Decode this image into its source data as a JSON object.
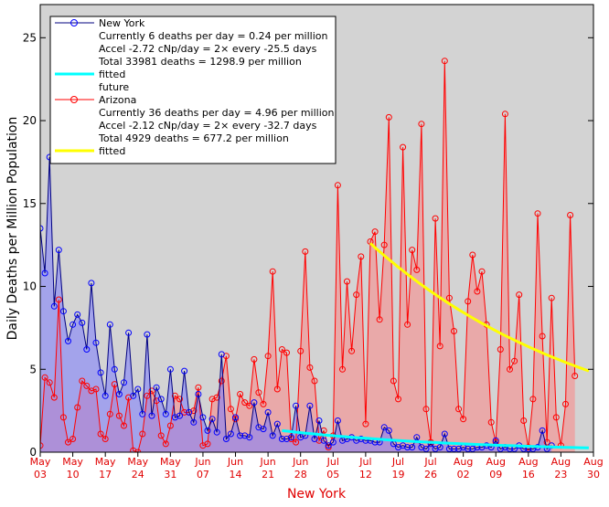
{
  "chart_data": {
    "type": "line",
    "xlabel": "New York",
    "ylabel": "Daily Deaths per Million Population",
    "ylim": [
      0,
      27
    ],
    "yticks": [
      0,
      5,
      10,
      15,
      20,
      25
    ],
    "grid": false,
    "legend_position": "top-left",
    "x_ticks": [
      {
        "month": "May",
        "day": "03"
      },
      {
        "month": "May",
        "day": "10"
      },
      {
        "month": "May",
        "day": "17"
      },
      {
        "month": "May",
        "day": "24"
      },
      {
        "month": "May",
        "day": "31"
      },
      {
        "month": "Jun",
        "day": "07"
      },
      {
        "month": "Jun",
        "day": "14"
      },
      {
        "month": "Jun",
        "day": "21"
      },
      {
        "month": "Jun",
        "day": "28"
      },
      {
        "month": "Jul",
        "day": "05"
      },
      {
        "month": "Jul",
        "day": "12"
      },
      {
        "month": "Jul",
        "day": "19"
      },
      {
        "month": "Jul",
        "day": "26"
      },
      {
        "month": "Aug",
        "day": "02"
      },
      {
        "month": "Aug",
        "day": "09"
      },
      {
        "month": "Aug",
        "day": "16"
      },
      {
        "month": "Aug",
        "day": "23"
      },
      {
        "month": "Aug",
        "day": "30"
      }
    ],
    "x_start_date": "2020-05-03",
    "legend": [
      {
        "kind": "series",
        "series": "ny",
        "text": "New York"
      },
      {
        "kind": "text",
        "text": "Currently 6 deaths per day = 0.24 per million"
      },
      {
        "kind": "text",
        "text": "Accel -2.72 cNp/day = 2× every -25.5 days"
      },
      {
        "kind": "text",
        "text": "Total 33981 deaths = 1298.9 per million"
      },
      {
        "kind": "fit",
        "series": "ny",
        "text": "fitted"
      },
      {
        "kind": "text",
        "text": "future"
      },
      {
        "kind": "series",
        "series": "az",
        "text": "Arizona"
      },
      {
        "kind": "text",
        "text": "Currently 36 deaths per day = 4.96 per million"
      },
      {
        "kind": "text",
        "text": "Accel -2.12 cNp/day = 2× every -32.7 days"
      },
      {
        "kind": "text",
        "text": "Total 4929 deaths = 677.2 per million"
      },
      {
        "kind": "fit",
        "series": "az",
        "text": "fitted"
      }
    ],
    "colors": {
      "background": "#d3d3d3",
      "ny_line": "#00007f",
      "ny_marker": "#0000ff",
      "ny_fill": "#7b7bff",
      "ny_fit": "#00ffff",
      "az_line": "#ff0000",
      "az_fill": "#ff8080",
      "az_fit": "#ffff00",
      "axis_text": "#e00000"
    },
    "series": [
      {
        "id": "ny",
        "name": "New York",
        "start_date": "2020-05-02",
        "values": [
          11.0,
          13.5,
          10.8,
          17.8,
          8.8,
          12.2,
          8.5,
          6.7,
          7.7,
          8.3,
          7.8,
          6.2,
          10.2,
          6.6,
          4.8,
          3.4,
          7.7,
          5.0,
          3.5,
          4.2,
          7.2,
          3.4,
          3.8,
          2.3,
          7.1,
          2.2,
          3.9,
          3.2,
          2.3,
          5.0,
          2.1,
          2.2,
          4.9,
          2.4,
          1.8,
          3.5,
          2.1,
          1.3,
          2.0,
          1.2,
          5.9,
          0.8,
          1.1,
          2.1,
          1.0,
          1.0,
          0.9,
          3.0,
          1.5,
          1.4,
          2.4,
          1.0,
          1.7,
          0.8,
          0.8,
          0.9,
          2.8,
          0.9,
          1.0,
          2.8,
          0.8,
          1.9,
          0.7,
          0.4,
          0.6,
          1.9,
          0.7,
          0.8,
          0.9,
          0.7,
          0.8,
          0.7,
          0.7,
          0.6,
          0.6,
          1.5,
          1.3,
          0.5,
          0.3,
          0.4,
          0.3,
          0.3,
          0.9,
          0.3,
          0.2,
          0.5,
          0.2,
          0.3,
          1.1,
          0.2,
          0.2,
          0.2,
          0.3,
          0.2,
          0.2,
          0.3,
          0.3,
          0.4,
          0.3,
          0.7,
          0.2,
          0.3,
          0.2,
          0.2,
          0.4,
          0.2,
          0.2,
          0.2,
          0.3,
          1.3,
          0.2,
          0.4
        ]
      },
      {
        "id": "az",
        "name": "Arizona",
        "start_date": "2020-05-02",
        "values": [
          1.8,
          0.4,
          4.5,
          4.2,
          3.3,
          9.2,
          2.1,
          0.6,
          0.8,
          2.7,
          4.3,
          4.0,
          3.7,
          3.8,
          1.1,
          0.8,
          2.3,
          4.1,
          2.2,
          1.6,
          3.3,
          0.1,
          0.0,
          1.1,
          3.4,
          3.7,
          3.1,
          1.0,
          0.5,
          1.6,
          3.4,
          3.2,
          2.4,
          2.4,
          2.5,
          3.9,
          0.4,
          0.5,
          3.2,
          3.3,
          4.3,
          5.8,
          2.6,
          2.0,
          3.5,
          3.0,
          2.8,
          5.6,
          3.6,
          2.9,
          5.8,
          10.9,
          3.8,
          6.2,
          6.0,
          0.8,
          0.6,
          6.1,
          12.1,
          5.1,
          4.3,
          0.7,
          1.3,
          0.3,
          1.0,
          16.1,
          5.0,
          10.3,
          6.1,
          9.5,
          11.8,
          1.7,
          12.7,
          13.3,
          8.0,
          12.5,
          20.2,
          4.3,
          3.2,
          18.4,
          7.7,
          12.2,
          11.0,
          19.8,
          2.6,
          0.6,
          14.1,
          6.4,
          23.6,
          9.3,
          7.3,
          2.6,
          2.0,
          9.1,
          11.9,
          9.7,
          10.9,
          7.7,
          1.8,
          0.6,
          6.2,
          20.4,
          5.0,
          5.5,
          9.5,
          1.9,
          0.3,
          3.2,
          14.4,
          7.0,
          0.6,
          9.3,
          2.1,
          0.4,
          2.9,
          14.3,
          4.6
        ]
      }
    ],
    "fits": [
      {
        "series": "ny",
        "x_dates": [
          "2020-06-24",
          "2020-08-29"
        ],
        "y": [
          1.3,
          0.26
        ]
      },
      {
        "series": "az",
        "x_dates": [
          "2020-07-13",
          "2020-08-29"
        ],
        "y": [
          12.6,
          4.9
        ]
      }
    ]
  }
}
